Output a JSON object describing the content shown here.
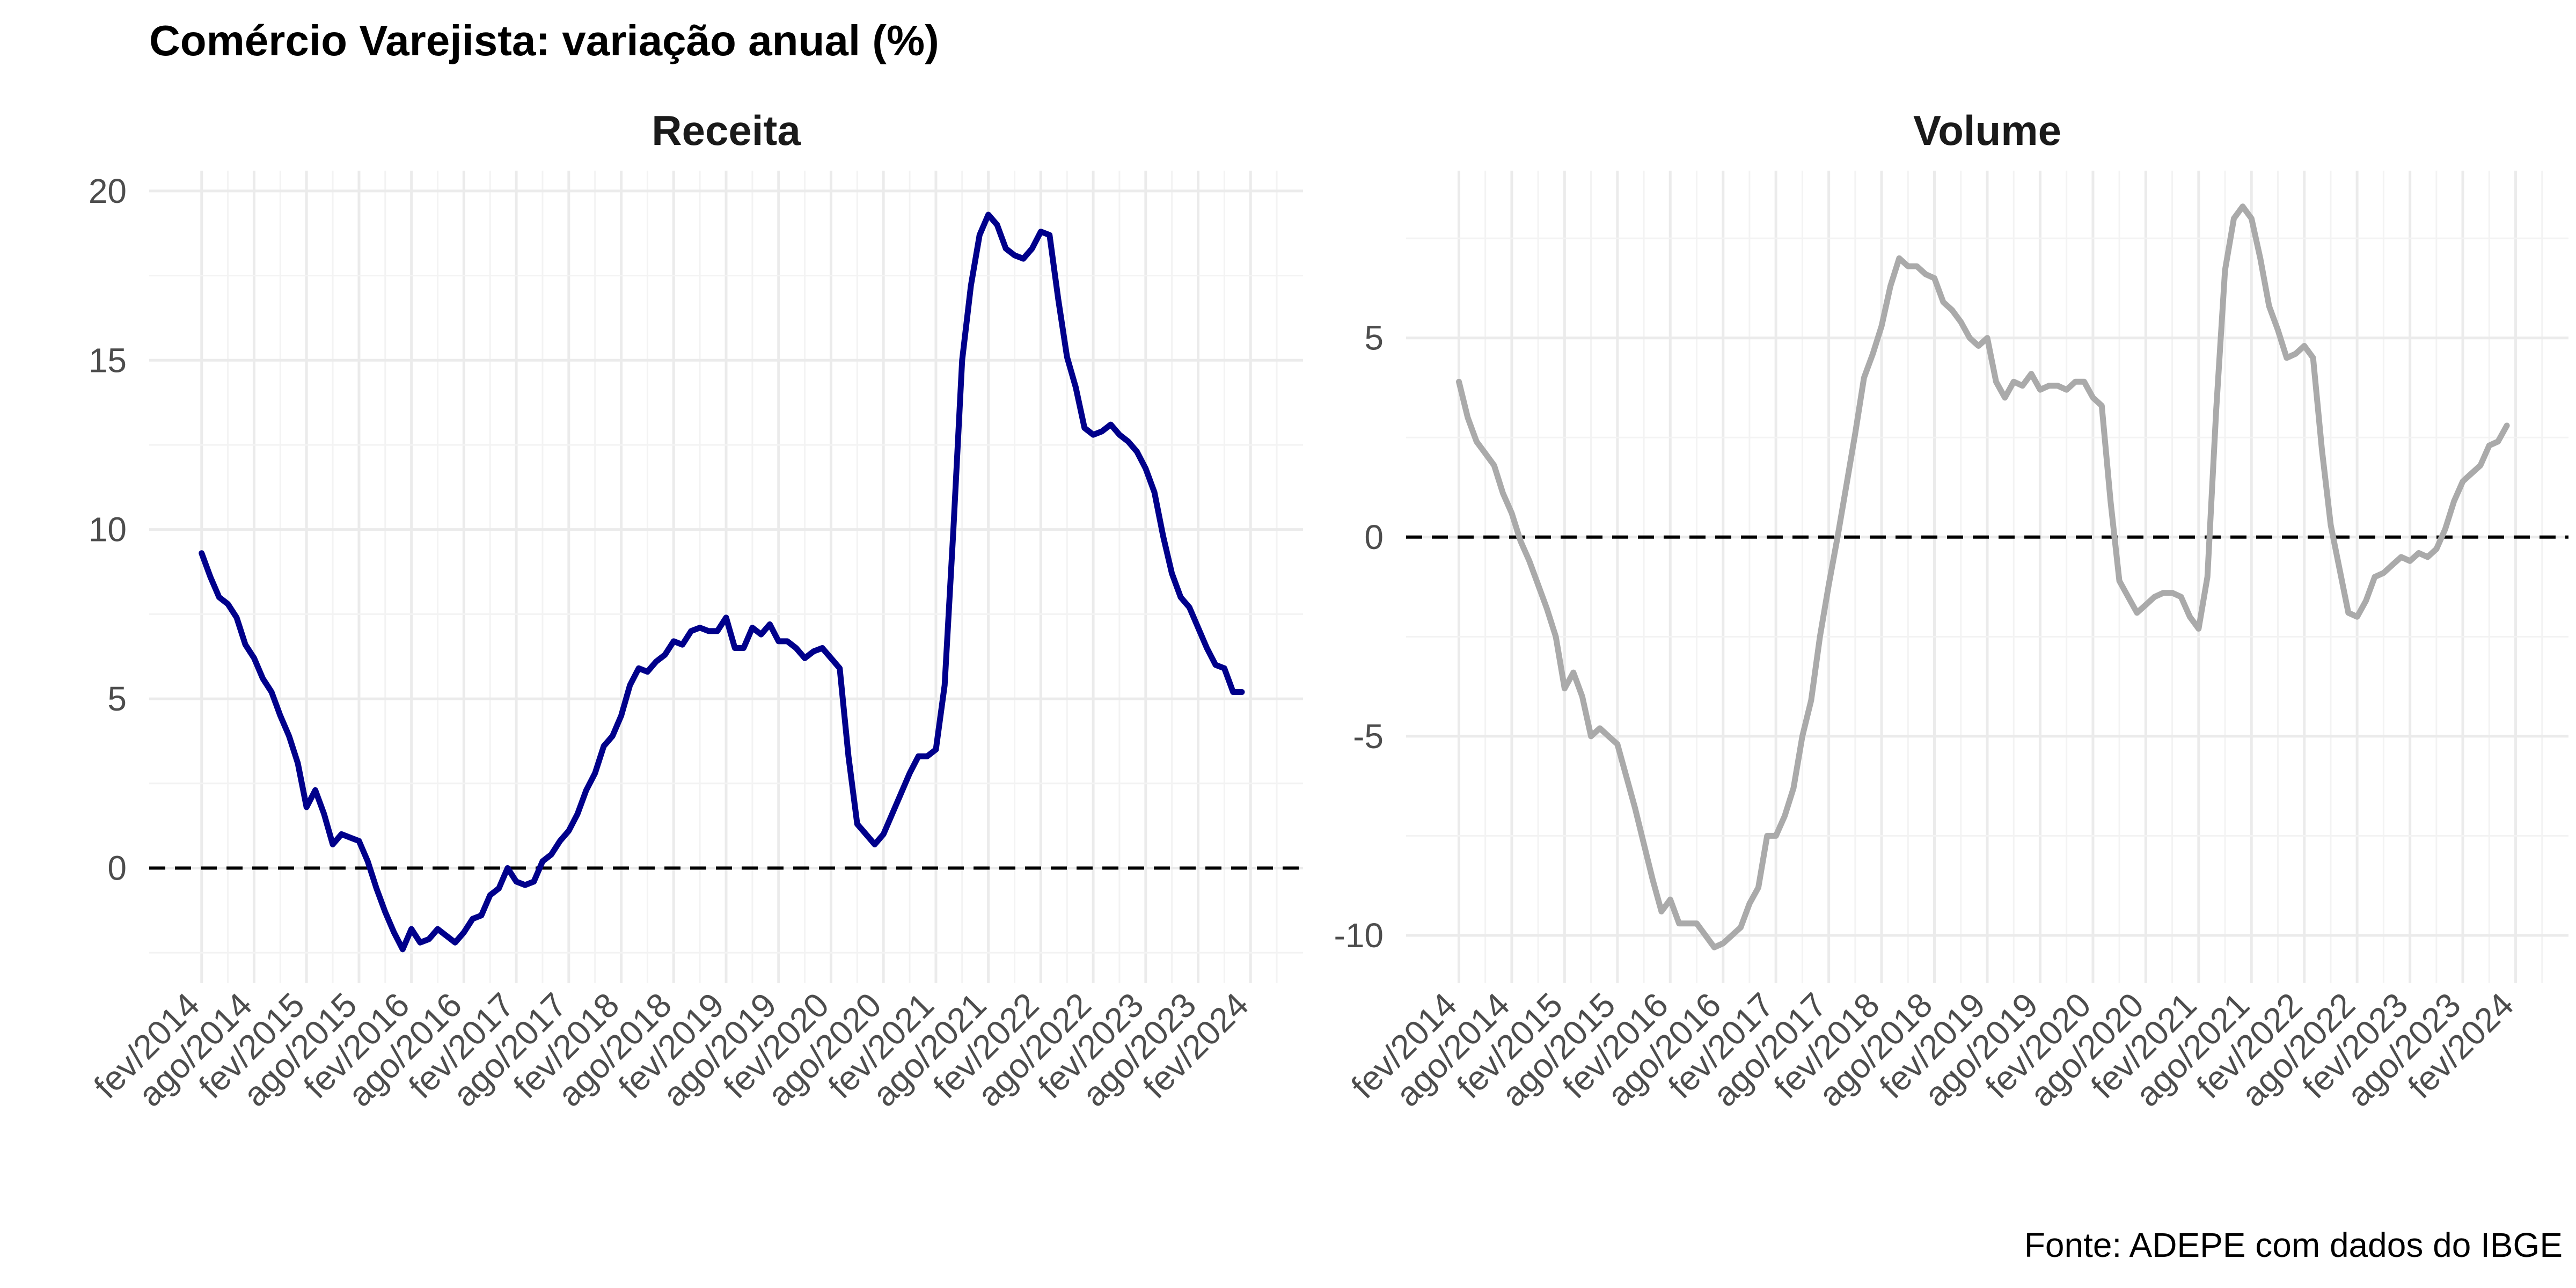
{
  "title": "Comércio Varejista: variação anual (%)",
  "caption": "Fonte: ADEPE com dados do IBGE",
  "colors": {
    "receita": "#00008B",
    "volume": "#AAAAAA"
  },
  "chart_data": [
    {
      "type": "line",
      "title": "Receita",
      "color": "#00008B",
      "start": "2014-02",
      "xticks": [
        "fev/2014",
        "ago/2014",
        "fev/2015",
        "ago/2015",
        "fev/2016",
        "ago/2016",
        "fev/2017",
        "ago/2017",
        "fev/2018",
        "ago/2018",
        "fev/2019",
        "ago/2019",
        "fev/2020",
        "ago/2020",
        "fev/2021",
        "ago/2021",
        "fev/2022",
        "ago/2022",
        "fev/2023",
        "ago/2023",
        "fev/2024"
      ],
      "yticks": [
        0,
        5,
        10,
        15,
        20
      ],
      "ylim": [
        -3.4,
        20.6
      ],
      "reference_line": 0,
      "values": [
        9.3,
        8.6,
        8.0,
        7.8,
        7.4,
        6.6,
        6.2,
        5.6,
        5.2,
        4.5,
        3.9,
        3.1,
        1.8,
        2.3,
        1.6,
        0.7,
        1.0,
        0.9,
        0.8,
        0.2,
        -0.6,
        -1.3,
        -1.9,
        -2.4,
        -1.8,
        -2.2,
        -2.1,
        -1.8,
        -2.0,
        -2.2,
        -1.9,
        -1.5,
        -1.4,
        -0.8,
        -0.6,
        0.0,
        -0.4,
        -0.5,
        -0.4,
        0.2,
        0.4,
        0.8,
        1.1,
        1.6,
        2.3,
        2.8,
        3.6,
        3.9,
        4.5,
        5.4,
        5.9,
        5.8,
        6.1,
        6.3,
        6.7,
        6.6,
        7.0,
        7.1,
        7.0,
        7.0,
        7.4,
        6.5,
        6.5,
        7.1,
        6.9,
        7.2,
        6.7,
        6.7,
        6.5,
        6.2,
        6.4,
        6.5,
        6.2,
        5.9,
        3.3,
        1.3,
        1.0,
        0.7,
        1.0,
        1.6,
        2.2,
        2.8,
        3.3,
        3.3,
        3.5,
        5.4,
        10.0,
        15.0,
        17.2,
        18.7,
        19.3,
        19.0,
        18.3,
        18.1,
        18.0,
        18.3,
        18.8,
        18.7,
        16.8,
        15.1,
        14.2,
        13.0,
        12.8,
        12.9,
        13.1,
        12.8,
        12.6,
        12.3,
        11.8,
        11.1,
        9.8,
        8.7,
        8.0,
        7.7,
        7.1,
        6.5,
        6.0,
        5.9,
        5.2,
        5.2
      ]
    },
    {
      "type": "line",
      "title": "Volume",
      "color": "#AAAAAA",
      "start": "2014-02",
      "xticks": [
        "fev/2014",
        "ago/2014",
        "fev/2015",
        "ago/2015",
        "fev/2016",
        "ago/2016",
        "fev/2017",
        "ago/2017",
        "fev/2018",
        "ago/2018",
        "fev/2019",
        "ago/2019",
        "fev/2020",
        "ago/2020",
        "fev/2021",
        "ago/2021",
        "fev/2022",
        "ago/2022",
        "fev/2023",
        "ago/2023",
        "fev/2024"
      ],
      "yticks": [
        -10,
        -5,
        0,
        5
      ],
      "ylim": [
        -11.2,
        9.2
      ],
      "reference_line": 0,
      "values": [
        3.9,
        3.0,
        2.4,
        2.1,
        1.8,
        1.1,
        0.6,
        -0.1,
        -0.6,
        -1.2,
        -1.8,
        -2.5,
        -3.8,
        -3.4,
        -4.0,
        -5.0,
        -4.8,
        -5.0,
        -5.2,
        -6.0,
        -6.8,
        -7.7,
        -8.6,
        -9.4,
        -9.1,
        -9.7,
        -9.7,
        -9.7,
        -10.0,
        -10.3,
        -10.2,
        -10.0,
        -9.8,
        -9.2,
        -8.8,
        -7.5,
        -7.5,
        -7.0,
        -6.3,
        -5.0,
        -4.1,
        -2.5,
        -1.2,
        0.0,
        1.3,
        2.6,
        4.0,
        4.6,
        5.3,
        6.3,
        7.0,
        6.8,
        6.8,
        6.6,
        6.5,
        5.9,
        5.7,
        5.4,
        5.0,
        4.8,
        5.0,
        3.9,
        3.5,
        3.9,
        3.8,
        4.1,
        3.7,
        3.8,
        3.8,
        3.7,
        3.9,
        3.9,
        3.5,
        3.3,
        0.9,
        -1.1,
        -1.5,
        -1.9,
        -1.7,
        -1.5,
        -1.4,
        -1.4,
        -1.5,
        -2.0,
        -2.3,
        -1.0,
        3.2,
        6.7,
        8.0,
        8.3,
        8.0,
        7.0,
        5.8,
        5.2,
        4.5,
        4.6,
        4.8,
        4.5,
        2.2,
        0.3,
        -0.8,
        -1.9,
        -2.0,
        -1.6,
        -1.0,
        -0.9,
        -0.7,
        -0.5,
        -0.6,
        -0.4,
        -0.5,
        -0.3,
        0.2,
        0.9,
        1.4,
        1.6,
        1.8,
        2.3,
        2.4,
        2.8
      ]
    }
  ]
}
